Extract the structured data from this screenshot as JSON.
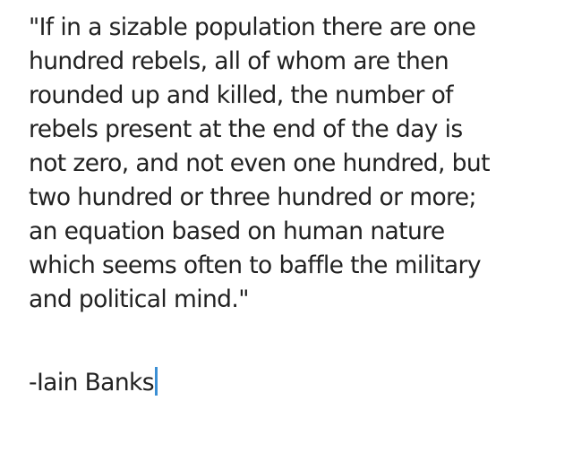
{
  "note": {
    "quote_lines": [
      "\"If in a sizable population there are one",
      "hundred rebels, all of whom are then",
      "rounded up and killed, the number of",
      "rebels present at the end of the day is",
      "not zero, and not even one hundred, but",
      "two hundred or three hundred or more;",
      "an equation based on human nature",
      "which seems often to baffle the military",
      "and political mind.\""
    ],
    "attribution": "-Iain Banks",
    "caret_color": "#3b8fd4"
  }
}
